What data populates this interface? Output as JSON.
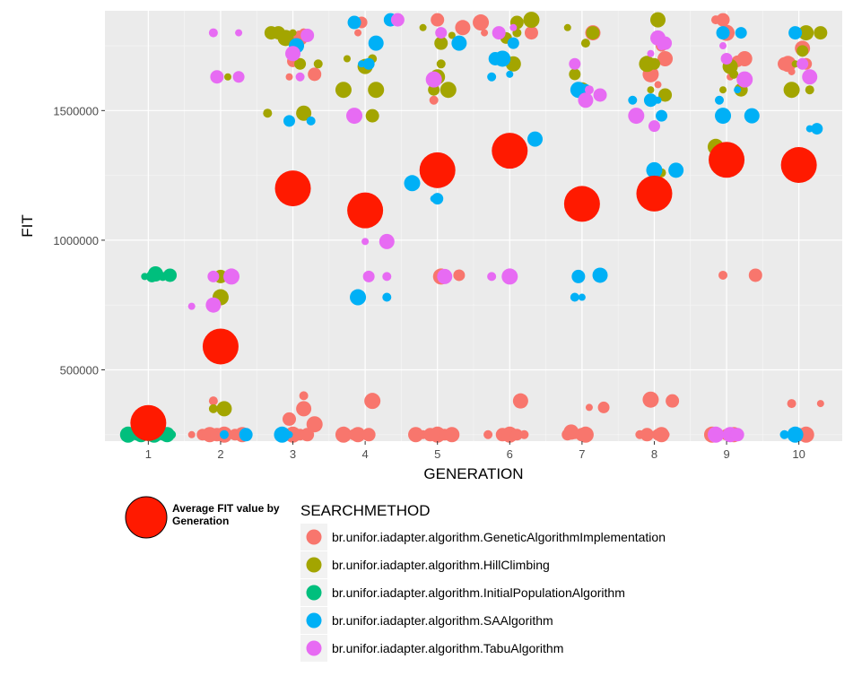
{
  "chart_data": {
    "type": "scatter",
    "title": "",
    "xlabel": "GENERATION",
    "ylabel": "FIT",
    "xlim": [
      0.4,
      10.6
    ],
    "ylim": [
      225000,
      1885000
    ],
    "x_ticks": [
      1,
      2,
      3,
      4,
      5,
      6,
      7,
      8,
      9,
      10
    ],
    "y_ticks": [
      500000,
      1000000,
      1500000
    ],
    "y_tick_labels": [
      "500000",
      "1000000",
      "1500000"
    ],
    "grid": true,
    "legend": {
      "title": "SEARCHMETHOD",
      "placement": "bottom",
      "average_label": "Average FIT value by Generation",
      "average_color": "#ff1a00"
    },
    "series": [
      {
        "name": "br.unifor.iadapter.algorithm.GeneticAlgorithmImplementation",
        "color": "#f8766d",
        "points": [
          [
            1.6,
            250000
          ],
          [
            1.75,
            250000
          ],
          [
            1.85,
            250000
          ],
          [
            1.9,
            380000
          ],
          [
            1.95,
            250000
          ],
          [
            2.05,
            250000
          ],
          [
            2.1,
            250000
          ],
          [
            2.2,
            250000
          ],
          [
            2.3,
            250000
          ],
          [
            2.9,
            250000
          ],
          [
            2.95,
            310000
          ],
          [
            3.0,
            250000
          ],
          [
            3.05,
            250000
          ],
          [
            3.1,
            250000
          ],
          [
            3.15,
            350000
          ],
          [
            3.15,
            400000
          ],
          [
            3.2,
            250000
          ],
          [
            3.3,
            290000
          ],
          [
            2.95,
            1630000
          ],
          [
            3.0,
            1690000
          ],
          [
            3.1,
            1780000
          ],
          [
            3.15,
            1800000
          ],
          [
            3.3,
            1640000
          ],
          [
            3.7,
            250000
          ],
          [
            3.8,
            250000
          ],
          [
            3.85,
            250000
          ],
          [
            3.9,
            250000
          ],
          [
            4.0,
            250000
          ],
          [
            4.05,
            250000
          ],
          [
            4.1,
            380000
          ],
          [
            3.9,
            1800000
          ],
          [
            3.95,
            1840000
          ],
          [
            4.7,
            250000
          ],
          [
            4.8,
            250000
          ],
          [
            4.9,
            250000
          ],
          [
            5.0,
            250000
          ],
          [
            5.05,
            250000
          ],
          [
            5.1,
            250000
          ],
          [
            5.2,
            250000
          ],
          [
            4.95,
            1540000
          ],
          [
            5.0,
            1850000
          ],
          [
            5.05,
            860000
          ],
          [
            5.1,
            860000
          ],
          [
            5.3,
            865000
          ],
          [
            5.35,
            1820000
          ],
          [
            5.7,
            250000
          ],
          [
            5.9,
            250000
          ],
          [
            6.0,
            250000
          ],
          [
            6.05,
            250000
          ],
          [
            6.1,
            250000
          ],
          [
            6.15,
            380000
          ],
          [
            6.2,
            250000
          ],
          [
            6.3,
            1800000
          ],
          [
            5.6,
            1840000
          ],
          [
            5.65,
            1800000
          ],
          [
            6.8,
            250000
          ],
          [
            6.85,
            260000
          ],
          [
            6.9,
            250000
          ],
          [
            7.0,
            250000
          ],
          [
            7.05,
            250000
          ],
          [
            7.1,
            355000
          ],
          [
            7.3,
            355000
          ],
          [
            7.15,
            1800000
          ],
          [
            7.8,
            250000
          ],
          [
            7.9,
            250000
          ],
          [
            7.95,
            385000
          ],
          [
            8.0,
            250000
          ],
          [
            8.05,
            250000
          ],
          [
            8.1,
            250000
          ],
          [
            8.15,
            250000
          ],
          [
            8.25,
            380000
          ],
          [
            7.95,
            1640000
          ],
          [
            8.05,
            1600000
          ],
          [
            8.1,
            1750000
          ],
          [
            8.15,
            1700000
          ],
          [
            8.85,
            1850000
          ],
          [
            8.95,
            1850000
          ],
          [
            9.0,
            1800000
          ],
          [
            9.05,
            1630000
          ],
          [
            9.15,
            1690000
          ],
          [
            9.25,
            1700000
          ],
          [
            8.95,
            865000
          ],
          [
            9.4,
            865000
          ],
          [
            8.8,
            250000
          ],
          [
            8.9,
            250000
          ],
          [
            9.0,
            250000
          ],
          [
            9.1,
            250000
          ],
          [
            9.15,
            250000
          ],
          [
            9.8,
            1680000
          ],
          [
            9.85,
            1680000
          ],
          [
            9.9,
            1650000
          ],
          [
            10.1,
            1680000
          ],
          [
            10.05,
            1740000
          ],
          [
            9.9,
            370000
          ],
          [
            10.0,
            250000
          ],
          [
            10.1,
            250000
          ],
          [
            10.3,
            370000
          ]
        ]
      },
      {
        "name": "br.unifor.iadapter.algorithm.HillClimbing",
        "color": "#a3a500",
        "points": [
          [
            1.9,
            350000
          ],
          [
            2.0,
            860000
          ],
          [
            2.0,
            780000
          ],
          [
            2.1,
            1630000
          ],
          [
            1.95,
            1630000
          ],
          [
            2.05,
            350000
          ],
          [
            2.65,
            1490000
          ],
          [
            2.8,
            1800000
          ],
          [
            2.9,
            1780000
          ],
          [
            3.0,
            1800000
          ],
          [
            3.1,
            1680000
          ],
          [
            3.15,
            1490000
          ],
          [
            3.35,
            1680000
          ],
          [
            2.7,
            1800000
          ],
          [
            3.7,
            1580000
          ],
          [
            3.75,
            1700000
          ],
          [
            3.85,
            1480000
          ],
          [
            4.0,
            1670000
          ],
          [
            4.1,
            1700000
          ],
          [
            4.1,
            1480000
          ],
          [
            4.15,
            1580000
          ],
          [
            4.8,
            1820000
          ],
          [
            4.95,
            1580000
          ],
          [
            5.0,
            1630000
          ],
          [
            5.05,
            1680000
          ],
          [
            5.05,
            1760000
          ],
          [
            5.15,
            1580000
          ],
          [
            5.2,
            1790000
          ],
          [
            5.95,
            1780000
          ],
          [
            6.05,
            1680000
          ],
          [
            6.1,
            1800000
          ],
          [
            6.1,
            1840000
          ],
          [
            6.3,
            1850000
          ],
          [
            6.8,
            1820000
          ],
          [
            6.9,
            1640000
          ],
          [
            7.0,
            1580000
          ],
          [
            7.05,
            1760000
          ],
          [
            7.15,
            1800000
          ],
          [
            7.9,
            1680000
          ],
          [
            7.95,
            1580000
          ],
          [
            8.0,
            1680000
          ],
          [
            8.05,
            1850000
          ],
          [
            8.1,
            1260000
          ],
          [
            8.15,
            1560000
          ],
          [
            8.85,
            1360000
          ],
          [
            8.95,
            1580000
          ],
          [
            9.0,
            1340000
          ],
          [
            9.05,
            1670000
          ],
          [
            9.1,
            1640000
          ],
          [
            9.2,
            1580000
          ],
          [
            9.9,
            1580000
          ],
          [
            9.95,
            1680000
          ],
          [
            10.05,
            1730000
          ],
          [
            10.1,
            1800000
          ],
          [
            10.15,
            1580000
          ],
          [
            10.3,
            1800000
          ]
        ]
      },
      {
        "name": "br.unifor.iadapter.algorithm.InitialPopulationAlgorithm",
        "color": "#00bf7d",
        "points": [
          [
            0.95,
            860000
          ],
          [
            1.05,
            860000
          ],
          [
            1.1,
            870000
          ],
          [
            1.2,
            860000
          ],
          [
            1.3,
            865000
          ],
          [
            0.72,
            250000
          ],
          [
            0.78,
            250000
          ],
          [
            0.84,
            250000
          ],
          [
            0.9,
            250000
          ],
          [
            0.96,
            250000
          ],
          [
            1.02,
            250000
          ],
          [
            1.08,
            250000
          ],
          [
            1.14,
            250000
          ],
          [
            1.2,
            250000
          ],
          [
            1.26,
            250000
          ],
          [
            1.32,
            250000
          ]
        ]
      },
      {
        "name": "br.unifor.iadapter.algorithm.SAAlgorithm",
        "color": "#00b0f6",
        "points": [
          [
            2.05,
            250000
          ],
          [
            2.35,
            250000
          ],
          [
            2.85,
            250000
          ],
          [
            2.95,
            250000
          ],
          [
            2.95,
            1460000
          ],
          [
            3.05,
            1750000
          ],
          [
            3.25,
            1460000
          ],
          [
            3.85,
            1840000
          ],
          [
            3.9,
            780000
          ],
          [
            3.95,
            1680000
          ],
          [
            4.05,
            1680000
          ],
          [
            4.15,
            1760000
          ],
          [
            4.3,
            780000
          ],
          [
            4.35,
            1850000
          ],
          [
            4.65,
            1220000
          ],
          [
            4.95,
            1160000
          ],
          [
            5.0,
            1160000
          ],
          [
            5.3,
            1760000
          ],
          [
            5.75,
            1630000
          ],
          [
            5.8,
            1700000
          ],
          [
            5.9,
            1700000
          ],
          [
            6.0,
            1640000
          ],
          [
            6.05,
            1760000
          ],
          [
            6.35,
            1390000
          ],
          [
            6.9,
            780000
          ],
          [
            6.95,
            860000
          ],
          [
            6.95,
            1580000
          ],
          [
            7.0,
            780000
          ],
          [
            7.05,
            1580000
          ],
          [
            7.25,
            865000
          ],
          [
            7.7,
            1540000
          ],
          [
            7.95,
            1540000
          ],
          [
            8.0,
            1270000
          ],
          [
            8.05,
            1540000
          ],
          [
            8.1,
            1480000
          ],
          [
            8.3,
            1270000
          ],
          [
            8.9,
            1540000
          ],
          [
            8.95,
            1800000
          ],
          [
            8.95,
            1480000
          ],
          [
            9.15,
            1580000
          ],
          [
            9.2,
            1800000
          ],
          [
            9.35,
            1480000
          ],
          [
            9.8,
            250000
          ],
          [
            9.95,
            1800000
          ],
          [
            9.95,
            250000
          ],
          [
            10.15,
            1430000
          ],
          [
            10.25,
            1430000
          ]
        ]
      },
      {
        "name": "br.unifor.iadapter.algorithm.TabuAlgorithm",
        "color": "#e76bf3",
        "points": [
          [
            1.6,
            745000
          ],
          [
            1.9,
            860000
          ],
          [
            1.9,
            750000
          ],
          [
            1.9,
            1800000
          ],
          [
            1.95,
            1630000
          ],
          [
            2.15,
            860000
          ],
          [
            2.25,
            1800000
          ],
          [
            2.25,
            1630000
          ],
          [
            3.0,
            1720000
          ],
          [
            3.1,
            1630000
          ],
          [
            3.2,
            1790000
          ],
          [
            3.85,
            1480000
          ],
          [
            4.0,
            995000
          ],
          [
            4.05,
            860000
          ],
          [
            4.3,
            995000
          ],
          [
            4.3,
            860000
          ],
          [
            4.45,
            1850000
          ],
          [
            4.95,
            1620000
          ],
          [
            5.05,
            1260000
          ],
          [
            5.05,
            1800000
          ],
          [
            5.1,
            860000
          ],
          [
            5.75,
            860000
          ],
          [
            5.85,
            1800000
          ],
          [
            6.0,
            860000
          ],
          [
            6.05,
            1820000
          ],
          [
            6.9,
            1680000
          ],
          [
            7.05,
            1540000
          ],
          [
            7.1,
            1580000
          ],
          [
            7.25,
            1560000
          ],
          [
            7.75,
            1480000
          ],
          [
            7.95,
            1720000
          ],
          [
            8.0,
            1440000
          ],
          [
            8.05,
            1780000
          ],
          [
            8.1,
            1750000
          ],
          [
            8.15,
            1760000
          ],
          [
            8.85,
            250000
          ],
          [
            8.95,
            1750000
          ],
          [
            9.0,
            1700000
          ],
          [
            9.05,
            250000
          ],
          [
            9.1,
            250000
          ],
          [
            9.15,
            250000
          ],
          [
            9.25,
            1620000
          ],
          [
            9.9,
            1260000
          ],
          [
            10.05,
            1680000
          ],
          [
            10.15,
            1630000
          ]
        ]
      }
    ],
    "average_series": {
      "name": "Average FIT value by Generation",
      "color": "#ff1a00",
      "x": [
        1,
        2,
        3,
        4,
        5,
        6,
        7,
        8,
        9,
        10
      ],
      "y": [
        295000,
        590000,
        1200000,
        1115000,
        1270000,
        1345000,
        1140000,
        1180000,
        1310000,
        1290000
      ]
    }
  }
}
